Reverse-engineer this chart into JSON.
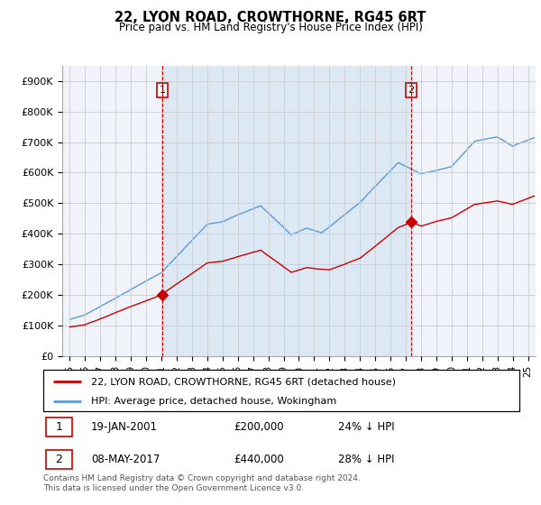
{
  "title": "22, LYON ROAD, CROWTHORNE, RG45 6RT",
  "subtitle": "Price paid vs. HM Land Registry's House Price Index (HPI)",
  "ylim": [
    0,
    950000
  ],
  "yticks": [
    0,
    100000,
    200000,
    300000,
    400000,
    500000,
    600000,
    700000,
    800000,
    900000
  ],
  "ytick_labels": [
    "£0",
    "£100K",
    "£200K",
    "£300K",
    "£400K",
    "£500K",
    "£600K",
    "£700K",
    "£800K",
    "£900K"
  ],
  "hpi_color": "#5b9bd5",
  "hpi_fill_color": "#dce9f5",
  "price_color": "#cc0000",
  "dashed_color": "#cc0000",
  "transaction1_x": 2001.05,
  "transaction1_price": 200000,
  "transaction2_x": 2017.36,
  "transaction2_price": 440000,
  "legend_label_price": "22, LYON ROAD, CROWTHORNE, RG45 6RT (detached house)",
  "legend_label_hpi": "HPI: Average price, detached house, Wokingham",
  "footer": "Contains HM Land Registry data © Crown copyright and database right 2024.\nThis data is licensed under the Open Government Licence v3.0.",
  "xlim_start": 1994.5,
  "xlim_end": 2025.5,
  "grid_color": "#cccccc",
  "plot_bg_color": "#f0f4fa"
}
